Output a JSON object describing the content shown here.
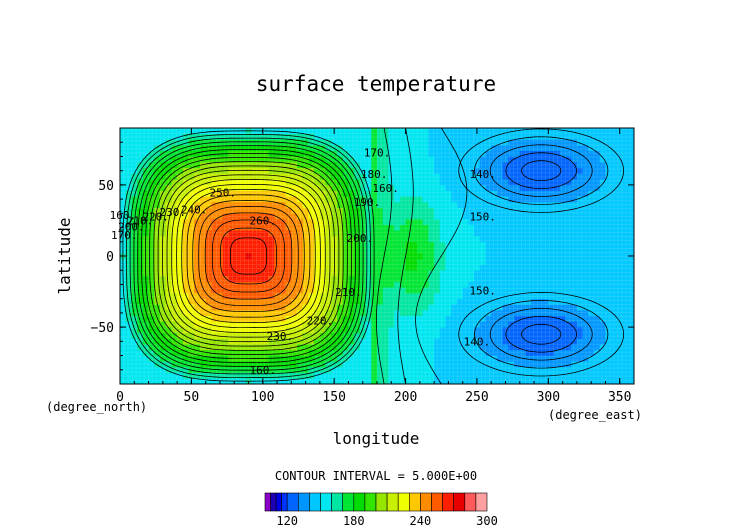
{
  "chart_data": {
    "type": "heatmap",
    "title": "surface temperature",
    "xlabel": "longitude",
    "ylabel": "latitude",
    "xunit": "(degree_east)",
    "yunit": "(degree_north)",
    "xlim": [
      0,
      360
    ],
    "ylim": [
      -90,
      90
    ],
    "xticks": [
      "0",
      "50",
      "100",
      "150",
      "200",
      "250",
      "300",
      "350"
    ],
    "yticks": [
      "50",
      "0",
      "−50"
    ],
    "contour_interval_text": "CONTOUR INTERVAL = 5.000E+00",
    "colorbar": {
      "ticks": [
        "120",
        "180",
        "240",
        "300"
      ],
      "bins": [
        {
          "lo": 100,
          "hi": 105,
          "color": "#8a00c8"
        },
        {
          "lo": 105,
          "hi": 110,
          "color": "#1e00b4"
        },
        {
          "lo": 110,
          "hi": 115,
          "color": "#0000e6"
        },
        {
          "lo": 115,
          "hi": 120,
          "color": "#0032ff"
        },
        {
          "lo": 120,
          "hi": 130,
          "color": "#0064ff"
        },
        {
          "lo": 130,
          "hi": 140,
          "color": "#0096ff"
        },
        {
          "lo": 140,
          "hi": 150,
          "color": "#00c8ff"
        },
        {
          "lo": 150,
          "hi": 160,
          "color": "#00e6f0"
        },
        {
          "lo": 160,
          "hi": 170,
          "color": "#00e6a0"
        },
        {
          "lo": 170,
          "hi": 180,
          "color": "#00e632"
        },
        {
          "lo": 180,
          "hi": 190,
          "color": "#00dc00"
        },
        {
          "lo": 190,
          "hi": 200,
          "color": "#32e600"
        },
        {
          "lo": 200,
          "hi": 210,
          "color": "#96e600"
        },
        {
          "lo": 210,
          "hi": 220,
          "color": "#c8f000"
        },
        {
          "lo": 220,
          "hi": 230,
          "color": "#f0ff00"
        },
        {
          "lo": 230,
          "hi": 240,
          "color": "#ffc800"
        },
        {
          "lo": 240,
          "hi": 250,
          "color": "#ff8c00"
        },
        {
          "lo": 250,
          "hi": 260,
          "color": "#ff5a00"
        },
        {
          "lo": 260,
          "hi": 270,
          "color": "#ff1e00"
        },
        {
          "lo": 270,
          "hi": 280,
          "color": "#e60000"
        },
        {
          "lo": 280,
          "hi": 290,
          "color": "#ff5a5a"
        },
        {
          "lo": 290,
          "hi": 300,
          "color": "#ffa0a0"
        }
      ]
    },
    "fields": {
      "hot_center": {
        "lon": 90,
        "lat": 0,
        "value": 270
      },
      "hot_square_halfwidth_lon": 88,
      "hot_square_halfwidth_lat": 88,
      "cold_centers": [
        {
          "lon": 295,
          "lat": 60,
          "value": 120
        },
        {
          "lon": 295,
          "lat": -55,
          "value": 120
        }
      ],
      "background_value": 150
    },
    "contour_labels": [
      {
        "text": "260.",
        "lon": 100,
        "lat": 22
      },
      {
        "text": "250.",
        "lon": 72,
        "lat": 42
      },
      {
        "text": "240.",
        "lon": 52,
        "lat": 30
      },
      {
        "text": "230.",
        "lon": 37,
        "lat": 28
      },
      {
        "text": "220.",
        "lon": 25,
        "lat": 25
      },
      {
        "text": "210.",
        "lon": 14,
        "lat": 22
      },
      {
        "text": "200.",
        "lon": 8,
        "lat": 18
      },
      {
        "text": "170.",
        "lon": 3,
        "lat": 12
      },
      {
        "text": "160.",
        "lon": 2,
        "lat": 26
      },
      {
        "text": "230.",
        "lon": 112,
        "lat": -59
      },
      {
        "text": "220.",
        "lon": 140,
        "lat": -48
      },
      {
        "text": "210.",
        "lon": 160,
        "lat": -28
      },
      {
        "text": "200.",
        "lon": 168,
        "lat": 10
      },
      {
        "text": "190.",
        "lon": 173,
        "lat": 35
      },
      {
        "text": "180.",
        "lon": 178,
        "lat": 55
      },
      {
        "text": "170.",
        "lon": 180,
        "lat": 70
      },
      {
        "text": "160.",
        "lon": 186,
        "lat": 45
      },
      {
        "text": "160.",
        "lon": 100,
        "lat": -83
      },
      {
        "text": "140.",
        "lon": 254,
        "lat": 55
      },
      {
        "text": "150.",
        "lon": 254,
        "lat": 25
      },
      {
        "text": "150.",
        "lon": 254,
        "lat": -27
      },
      {
        "text": "140.",
        "lon": 250,
        "lat": -63
      }
    ]
  }
}
